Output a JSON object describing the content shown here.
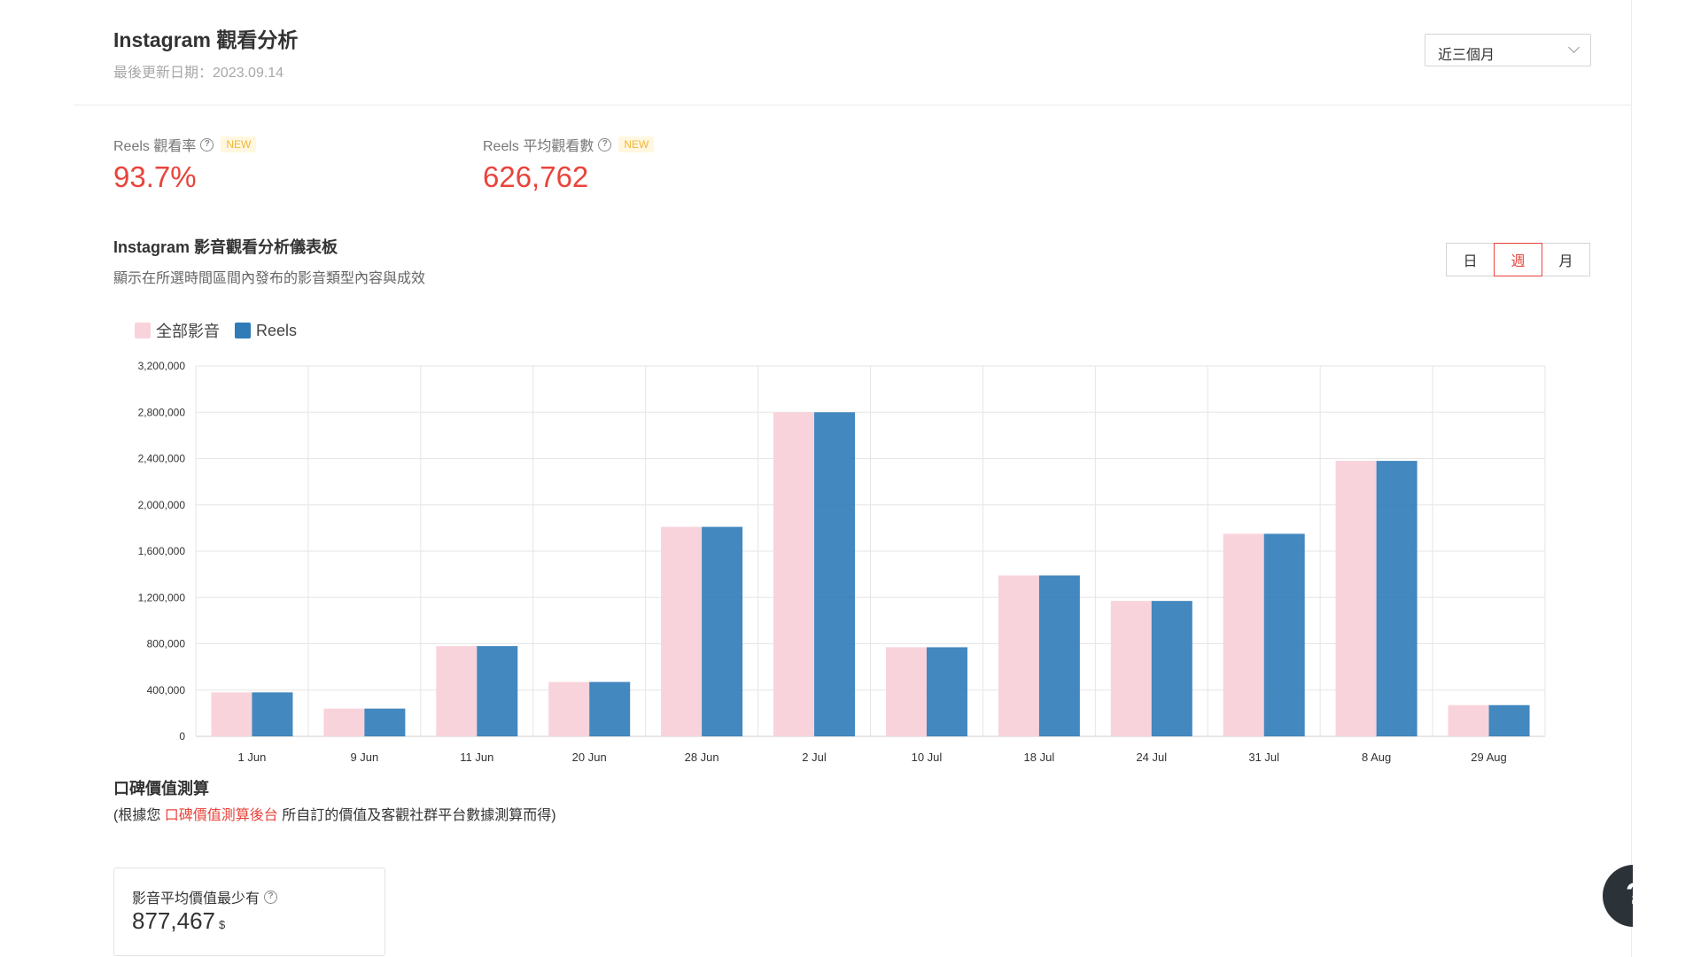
{
  "header": {
    "title": "Instagram 觀看分析",
    "updated": "最後更新日期：2023.09.14",
    "range_select": "近三個月"
  },
  "metrics": [
    {
      "label": "Reels 觀看率",
      "badge": "NEW",
      "value": "93.7%"
    },
    {
      "label": "Reels 平均觀看數",
      "badge": "NEW",
      "value": "626,762"
    }
  ],
  "dashboard": {
    "title": "Instagram 影音觀看分析儀表板",
    "subtitle": "顯示在所選時間區間內發布的影音類型內容與成效",
    "period_buttons": [
      "日",
      "週",
      "月"
    ],
    "active_period": "週"
  },
  "chart_data": {
    "type": "bar",
    "categories": [
      "1 Jun",
      "9 Jun",
      "11 Jun",
      "20 Jun",
      "28 Jun",
      "2 Jul",
      "10 Jul",
      "18 Jul",
      "24 Jul",
      "31 Jul",
      "8 Aug",
      "29 Aug"
    ],
    "series": [
      {
        "name": "全部影音",
        "color": "#f9d3db",
        "values": [
          380000,
          240000,
          780000,
          470000,
          1810000,
          2800000,
          770000,
          1390000,
          1170000,
          1750000,
          2380000,
          270000
        ]
      },
      {
        "name": "Reels",
        "color": "#2f7bb8",
        "values": [
          380000,
          240000,
          780000,
          470000,
          1810000,
          2800000,
          770000,
          1390000,
          1170000,
          1750000,
          2380000,
          270000
        ]
      }
    ],
    "y_ticks": [
      "3,200,000",
      "2,800,000",
      "2,400,000",
      "2,000,000",
      "1,600,000",
      "1,200,000",
      "800,000",
      "400,000",
      "0"
    ],
    "ylim": [
      0,
      3200000
    ],
    "grid": true,
    "legend_position": "top-left"
  },
  "word_of_mouth": {
    "title": "口碑價值測算",
    "desc_prefix": "(根據您 ",
    "desc_link": "口碑價值測算後台",
    "desc_suffix": " 所自訂的價值及客觀社群平台數據測算而得)",
    "card_label": "影音平均價值最少有",
    "card_value": "877,467",
    "card_unit": "$"
  },
  "fab": {
    "label": "?"
  },
  "icons": {
    "help": "question-circle-icon",
    "dropdown": "chevron-down-icon"
  }
}
